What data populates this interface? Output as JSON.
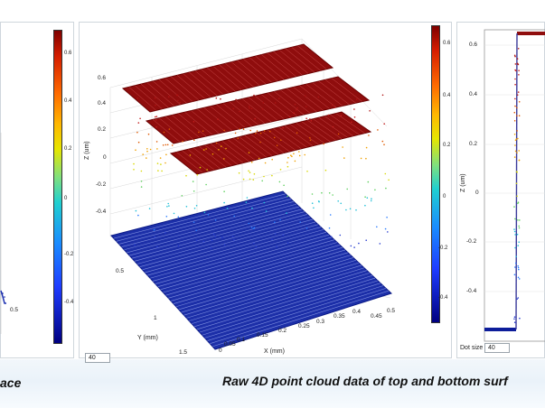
{
  "captions": {
    "left_partial": "ace",
    "main": "Raw 4D point cloud data of top and bottom surf"
  },
  "left_panel": {
    "colorbar_ticks": [
      "0.6",
      "0.4",
      "0.2",
      "0",
      "-0.2",
      "-0.4"
    ],
    "x_tick": "0.5"
  },
  "middle_panel": {
    "z_label": "Z (um)",
    "y_label": "Y (mm)",
    "x_label": "X (mm)",
    "z_ticks": [
      "0.6",
      "0.4",
      "0.2",
      "0",
      "-0.2",
      "-0.4"
    ],
    "y_ticks": [
      "0.5",
      "1",
      "1.5"
    ],
    "x_ticks": [
      "0",
      "0.05",
      "0.1",
      "0.15",
      "0.2",
      "0.25",
      "0.3",
      "0.35",
      "0.4",
      "0.45",
      "0.5"
    ],
    "colorbar_ticks": [
      "0.6",
      "0.4",
      "0.2",
      "0",
      "-0.2",
      "-0.4"
    ],
    "dot_size_value": "40"
  },
  "right_panel": {
    "z_label": "Z (um)",
    "y_ticks": [
      "0.6",
      "0.4",
      "0.2",
      "0",
      "-0.2",
      "-0.4"
    ],
    "dot_size_label": "Dot size",
    "dot_size_value": "40"
  }
}
